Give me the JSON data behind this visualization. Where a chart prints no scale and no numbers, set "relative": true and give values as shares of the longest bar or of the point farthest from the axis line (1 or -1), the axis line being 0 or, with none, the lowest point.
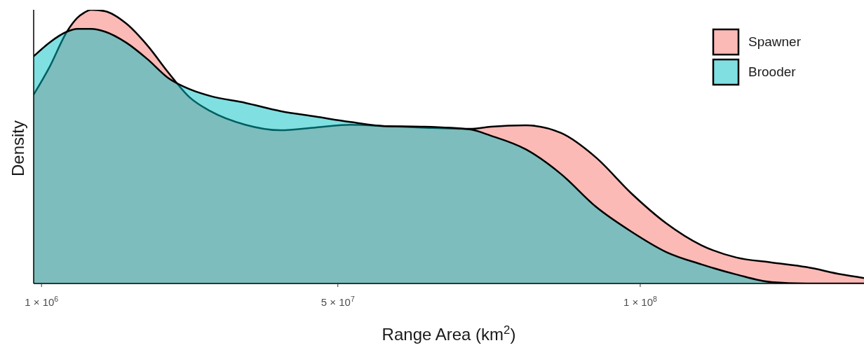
{
  "chart_data": {
    "type": "area",
    "relative": true,
    "xlabel": "Range Area (km$^{2}$)",
    "ylabel": "Density",
    "x": [
      -300000,
      2300000,
      5200000,
      6900000,
      8100000,
      9200000,
      11500000,
      15000000,
      18500000,
      22000000,
      25500000,
      28900000,
      34700000,
      40500000,
      46300000,
      52100000,
      57900000,
      63700000,
      71800000,
      75300000,
      81100000,
      86900000,
      92700000,
      98500000,
      104300000,
      110100000,
      115900000,
      121700000,
      127500000,
      133300000,
      137000000
    ],
    "xlim": [
      -300000,
      137000000
    ],
    "xticks": [
      {
        "value": 1000000,
        "label": "1 × 10$^{6}$"
      },
      {
        "value": 50000000,
        "label": "5 × 10$^{7}$"
      },
      {
        "value": 100000000,
        "label": "1 × 10$^{8}$"
      }
    ],
    "series": [
      {
        "name": "Spawner",
        "color": "#f8766d",
        "values": [
          0.69,
          0.79,
          0.92,
          0.97,
          0.99,
          1.0,
          0.995,
          0.95,
          0.87,
          0.77,
          0.68,
          0.63,
          0.58,
          0.56,
          0.57,
          0.58,
          0.575,
          0.57,
          0.565,
          0.573,
          0.578,
          0.55,
          0.46,
          0.33,
          0.22,
          0.14,
          0.095,
          0.077,
          0.06,
          0.033,
          0.02
        ]
      },
      {
        "name": "Brooder",
        "color": "#00bfc4",
        "values": [
          0.83,
          0.88,
          0.92,
          0.93,
          0.93,
          0.93,
          0.92,
          0.88,
          0.82,
          0.75,
          0.71,
          0.685,
          0.66,
          0.63,
          0.61,
          0.59,
          0.575,
          0.573,
          0.563,
          0.54,
          0.49,
          0.4,
          0.28,
          0.19,
          0.115,
          0.07,
          0.033,
          0.005,
          0,
          0,
          0
        ]
      }
    ],
    "legend": "top right",
    "grid": false,
    "line_style": "solid"
  }
}
